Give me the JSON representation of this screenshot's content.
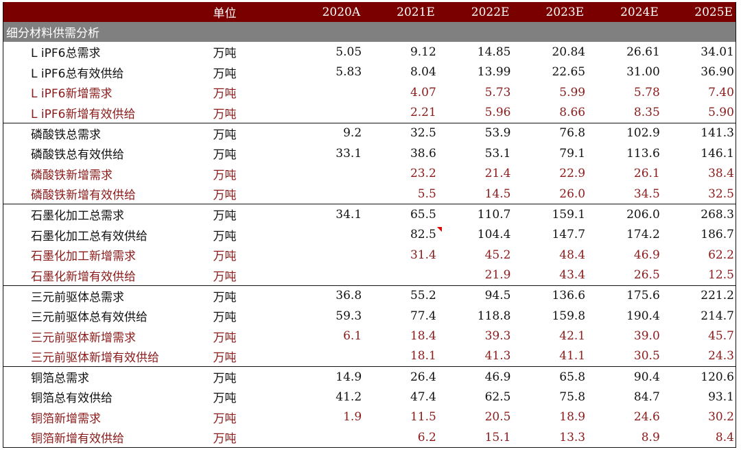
{
  "header": {
    "unit_label": "单位",
    "years": [
      "2020A",
      "2021E",
      "2022E",
      "2023E",
      "2024E",
      "2025E"
    ]
  },
  "section_title": "细分材料供需分析",
  "rows": [
    {
      "name": "L iPF6总需求",
      "unit": "万吨",
      "red": false,
      "group_start": false,
      "values": [
        "5.05",
        "9.12",
        "14.85",
        "20.84",
        "26.61",
        "34.01"
      ]
    },
    {
      "name": "L iPF6总有效供给",
      "unit": "万吨",
      "red": false,
      "group_start": false,
      "values": [
        "5.83",
        "8.04",
        "13.99",
        "22.65",
        "31.00",
        "36.90"
      ]
    },
    {
      "name": "L iPF6新增需求",
      "unit": "万吨",
      "red": true,
      "group_start": false,
      "values": [
        "",
        "4.07",
        "5.73",
        "5.99",
        "5.78",
        "7.40"
      ]
    },
    {
      "name": "L iPF6新增有效供给",
      "unit": "万吨",
      "red": true,
      "group_start": false,
      "values": [
        "",
        "2.21",
        "5.96",
        "8.66",
        "8.35",
        "5.90"
      ]
    },
    {
      "name": "磷酸铁总需求",
      "unit": "万吨",
      "red": false,
      "group_start": true,
      "values": [
        "9.2",
        "32.5",
        "53.9",
        "76.8",
        "102.9",
        "141.3"
      ]
    },
    {
      "name": "磷酸铁总有效供给",
      "unit": "万吨",
      "red": false,
      "group_start": false,
      "values": [
        "33.1",
        "38.6",
        "53.1",
        "79.1",
        "113.6",
        "146.1"
      ]
    },
    {
      "name": "磷酸铁新增需求",
      "unit": "万吨",
      "red": true,
      "group_start": false,
      "values": [
        "",
        "23.2",
        "21.4",
        "22.9",
        "26.1",
        "38.4"
      ]
    },
    {
      "name": "磷酸铁新增有效供给",
      "unit": "万吨",
      "red": true,
      "group_start": false,
      "values": [
        "",
        "5.5",
        "14.5",
        "26.0",
        "34.5",
        "32.5"
      ]
    },
    {
      "name": "石墨化加工总需求",
      "unit": "万吨",
      "red": false,
      "group_start": true,
      "values": [
        "34.1",
        "65.5",
        "110.7",
        "159.1",
        "206.0",
        "268.3"
      ]
    },
    {
      "name": "石墨化加工总有效供给",
      "unit": "万吨",
      "red": false,
      "group_start": false,
      "values": [
        "",
        "82.5",
        "104.4",
        "147.7",
        "174.2",
        "186.7"
      ],
      "marker_col": 1
    },
    {
      "name": "石墨化加工新增需求",
      "unit": "万吨",
      "red": true,
      "group_start": false,
      "values": [
        "",
        "31.4",
        "45.2",
        "48.4",
        "46.9",
        "62.2"
      ]
    },
    {
      "name": "石墨化新增有效供给",
      "unit": "万吨",
      "red": true,
      "group_start": false,
      "values": [
        "",
        "",
        "21.9",
        "43.4",
        "26.5",
        "12.5"
      ]
    },
    {
      "name": "三元前驱体总需求",
      "unit": "万吨",
      "red": false,
      "group_start": true,
      "values": [
        "36.8",
        "55.2",
        "94.5",
        "136.6",
        "175.6",
        "221.2"
      ]
    },
    {
      "name": "三元前驱体总有效供给",
      "unit": "万吨",
      "red": false,
      "group_start": false,
      "values": [
        "59.3",
        "77.4",
        "118.8",
        "159.8",
        "190.4",
        "214.7"
      ]
    },
    {
      "name": "三元前驱体新增需求",
      "unit": "万吨",
      "red": true,
      "group_start": false,
      "values": [
        "6.1",
        "18.4",
        "39.3",
        "42.1",
        "39.0",
        "45.7"
      ]
    },
    {
      "name": "三元前驱体新增有效供给",
      "unit": "万吨",
      "red": true,
      "group_start": false,
      "values": [
        "",
        "18.1",
        "41.3",
        "41.1",
        "30.5",
        "24.3"
      ]
    },
    {
      "name": "铜箔总需求",
      "unit": "万吨",
      "red": false,
      "group_start": true,
      "values": [
        "14.9",
        "26.4",
        "46.9",
        "65.8",
        "90.4",
        "120.6"
      ]
    },
    {
      "name": "铜箔总有效供给",
      "unit": "万吨",
      "red": false,
      "group_start": false,
      "values": [
        "41.2",
        "47.4",
        "62.5",
        "75.8",
        "84.7",
        "93.1"
      ]
    },
    {
      "name": "铜箔新增需求",
      "unit": "万吨",
      "red": true,
      "group_start": false,
      "values": [
        "1.9",
        "11.5",
        "20.5",
        "18.9",
        "24.6",
        "30.2"
      ]
    },
    {
      "name": "铜箔新增有效供给",
      "unit": "万吨",
      "red": true,
      "group_start": false,
      "values": [
        "",
        "6.2",
        "15.1",
        "13.3",
        "8.9",
        "8.4"
      ]
    }
  ],
  "colors": {
    "header_bg": "#7a0000",
    "section_bg": "#808080",
    "red_text": "#8b1a1a",
    "marker": "#e00000"
  }
}
